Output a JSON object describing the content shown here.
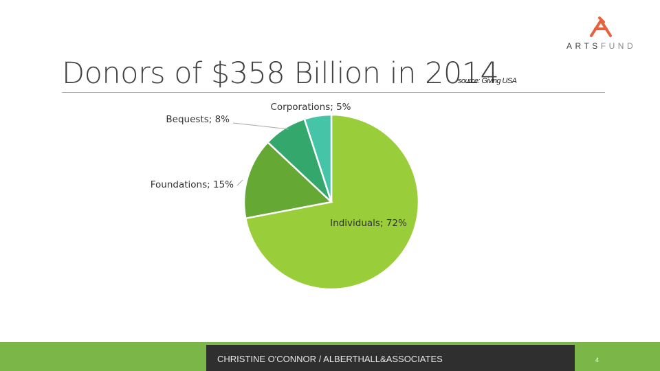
{
  "slide": {
    "title": "Donors of $358 Billion in 2014",
    "source": "source: Giving USA",
    "footer": "CHRISTINE O'CONNOR / ALBERTHALL&ASSOCIATES",
    "page_number": "4"
  },
  "logo": {
    "text_main": "ARTS",
    "text_dim": "FUND",
    "icon": "artsfund-figure-icon",
    "color": "#e8603c"
  },
  "chart_data": {
    "type": "pie",
    "title": "",
    "slices": [
      {
        "name": "Individuals",
        "value": 72,
        "label": "Individuals; 72%",
        "color": "#9acd3a"
      },
      {
        "name": "Foundations",
        "value": 15,
        "label": "Foundations; 15%",
        "color": "#66a834"
      },
      {
        "name": "Bequests",
        "value": 8,
        "label": "Bequests; 8%",
        "color": "#34a86c"
      },
      {
        "name": "Corporations",
        "value": 5,
        "label": "Corporations; 5%",
        "color": "#46c4a8"
      }
    ],
    "start": "12 o'clock",
    "direction": "clockwise",
    "legend": "none (data labels)"
  }
}
